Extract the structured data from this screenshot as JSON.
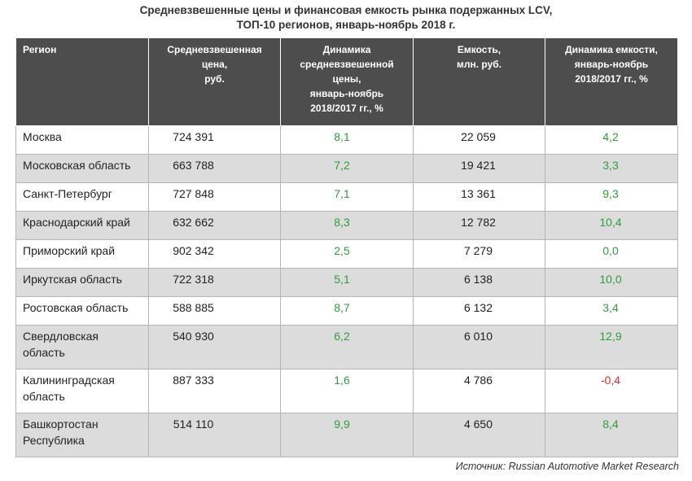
{
  "title": {
    "line1": "Средневзвешенные цены и финансовая емкость рынка подержанных LCV,",
    "line2": "ТОП-10 регионов, январь-ноябрь 2018 г."
  },
  "chart_data": {
    "type": "table",
    "columns": [
      "Регион",
      "Средневзвешенная цена, руб.",
      "Динамика средневзвешенной цены, январь-ноябрь 2018/2017 гг., %",
      "Емкость, млн. руб.",
      "Динамика емкости, январь-ноябрь 2018/2017 гг., %"
    ],
    "header_lines": [
      [
        "Регион"
      ],
      [
        "Средневзвешенная",
        "цена,",
        "руб."
      ],
      [
        "Динамика",
        "средневзвешенной",
        "цены,",
        "январь-ноябрь",
        "2018/2017 гг., %"
      ],
      [
        "Емкость,",
        "млн. руб."
      ],
      [
        "Динамика емкости,",
        "январь-ноябрь",
        "2018/2017 гг., %"
      ]
    ],
    "rows": [
      {
        "region": [
          "Москва"
        ],
        "price": "724 391",
        "price_dynamics": "8,1",
        "capacity": "22 059",
        "capacity_dynamics": "4,2"
      },
      {
        "region": [
          "Московская область"
        ],
        "price": "663 788",
        "price_dynamics": "7,2",
        "capacity": "19 421",
        "capacity_dynamics": "3,3"
      },
      {
        "region": [
          "Санкт-Петербург"
        ],
        "price": "727 848",
        "price_dynamics": "7,1",
        "capacity": "13 361",
        "capacity_dynamics": "9,3"
      },
      {
        "region": [
          "Краснодарский край"
        ],
        "price": "632 662",
        "price_dynamics": "8,3",
        "capacity": "12 782",
        "capacity_dynamics": "10,4"
      },
      {
        "region": [
          "Приморский край"
        ],
        "price": "902 342",
        "price_dynamics": "2,5",
        "capacity": "7 279",
        "capacity_dynamics": "0,0"
      },
      {
        "region": [
          "Иркутская область"
        ],
        "price": "722 318",
        "price_dynamics": "5,1",
        "capacity": "6 138",
        "capacity_dynamics": "10,0"
      },
      {
        "region": [
          "Ростовская область"
        ],
        "price": "588 885",
        "price_dynamics": "8,7",
        "capacity": "6 132",
        "capacity_dynamics": "3,4"
      },
      {
        "region": [
          "Свердловская",
          "область"
        ],
        "price": "540 930",
        "price_dynamics": "6,2",
        "capacity": "6 010",
        "capacity_dynamics": "12,9"
      },
      {
        "region": [
          "Калининградская",
          "область"
        ],
        "price": "887 333",
        "price_dynamics": "1,6",
        "capacity": "4 786",
        "capacity_dynamics": "-0,4"
      },
      {
        "region": [
          "Башкортостан",
          "Республика"
        ],
        "price": "514 110",
        "price_dynamics": "9,9",
        "capacity": "4 650",
        "capacity_dynamics": "8,4"
      }
    ],
    "colors": {
      "header_bg": "#4d4d4d",
      "header_text": "#ffffff",
      "row_alt_bg": "#dcdcdc",
      "positive": "#2e9d3a",
      "negative": "#e02b2b"
    }
  },
  "source": "Источник: Russian Automotive Market Research"
}
